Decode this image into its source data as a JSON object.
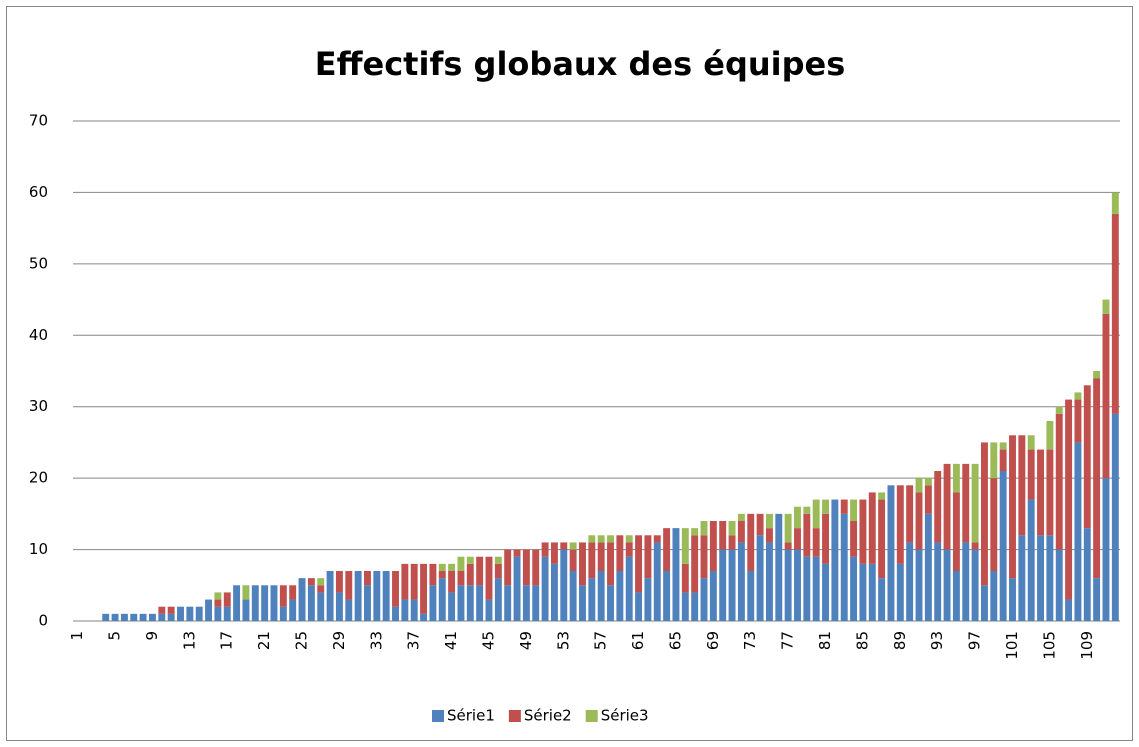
{
  "chart_data": {
    "type": "stacked_bar",
    "title": "Effectifs globaux des équipes",
    "categories": [
      "1",
      null,
      null,
      null,
      "5",
      null,
      null,
      null,
      "9",
      null,
      null,
      null,
      "13",
      null,
      null,
      null,
      "17",
      null,
      null,
      null,
      "21",
      null,
      null,
      null,
      "25",
      null,
      null,
      null,
      "29",
      null,
      null,
      null,
      "33",
      null,
      null,
      null,
      "37",
      null,
      null,
      null,
      "41",
      null,
      null,
      null,
      "45",
      null,
      null,
      null,
      "49",
      null,
      null,
      null,
      "53",
      null,
      null,
      null,
      "57",
      null,
      null,
      null,
      "61",
      null,
      null,
      null,
      "65",
      null,
      null,
      null,
      "69",
      null,
      null,
      null,
      "73",
      null,
      null,
      null,
      "77",
      null,
      null,
      null,
      "81",
      null,
      null,
      null,
      "85",
      null,
      null,
      null,
      "89",
      null,
      null,
      null,
      "93",
      null,
      null,
      null,
      "97",
      null,
      null,
      null,
      "101",
      null,
      null,
      null,
      "105",
      null,
      null,
      null,
      "109",
      null,
      null,
      null
    ],
    "series": [
      {
        "name": "Série1",
        "color": "#4f81bd",
        "values": [
          0,
          0,
          0,
          1,
          1,
          1,
          1,
          1,
          1,
          1,
          1,
          2,
          2,
          2,
          3,
          2,
          2,
          5,
          3,
          5,
          5,
          5,
          2,
          3,
          6,
          5,
          4,
          7,
          4,
          3,
          7,
          5,
          7,
          7,
          2,
          3,
          3,
          1,
          5,
          6,
          4,
          5,
          5,
          5,
          3,
          6,
          5,
          9,
          5,
          5,
          9,
          8,
          10,
          7,
          5,
          6,
          7,
          5,
          7,
          9,
          4,
          6,
          11,
          7,
          13,
          4,
          4,
          6,
          7,
          10,
          10,
          11,
          7,
          12,
          11,
          15,
          10,
          10,
          9,
          9,
          8,
          17,
          15,
          9,
          8,
          8,
          6,
          19,
          8,
          11,
          10,
          15,
          11,
          10,
          7,
          11,
          10,
          5,
          7,
          21,
          6,
          12,
          17,
          12,
          12,
          10,
          3,
          25,
          13,
          6,
          20,
          29
        ]
      },
      {
        "name": "Série2",
        "color": "#c0504d",
        "values": [
          0,
          0,
          0,
          0,
          0,
          0,
          0,
          0,
          0,
          1,
          1,
          0,
          0,
          0,
          0,
          1,
          2,
          0,
          0,
          0,
          0,
          0,
          3,
          2,
          0,
          1,
          1,
          0,
          3,
          4,
          0,
          2,
          0,
          0,
          5,
          5,
          5,
          7,
          3,
          1,
          3,
          2,
          3,
          4,
          6,
          2,
          5,
          1,
          5,
          5,
          2,
          3,
          1,
          3,
          6,
          5,
          4,
          6,
          5,
          2,
          8,
          6,
          1,
          6,
          0,
          4,
          8,
          6,
          7,
          4,
          2,
          3,
          8,
          3,
          2,
          0,
          1,
          3,
          6,
          4,
          7,
          0,
          2,
          5,
          9,
          10,
          11,
          0,
          11,
          8,
          8,
          4,
          10,
          12,
          11,
          11,
          1,
          20,
          13,
          3,
          20,
          14,
          7,
          12,
          12,
          19,
          28,
          6,
          20,
          28,
          23,
          28
        ]
      },
      {
        "name": "Série3",
        "color": "#9bbb59",
        "values": [
          0,
          0,
          0,
          0,
          0,
          0,
          0,
          0,
          0,
          0,
          0,
          0,
          0,
          0,
          0,
          1,
          0,
          0,
          2,
          0,
          0,
          0,
          0,
          0,
          0,
          0,
          1,
          0,
          0,
          0,
          0,
          0,
          0,
          0,
          0,
          0,
          0,
          0,
          0,
          1,
          1,
          2,
          1,
          0,
          0,
          1,
          0,
          0,
          0,
          0,
          0,
          0,
          0,
          1,
          0,
          1,
          1,
          1,
          0,
          1,
          0,
          0,
          0,
          0,
          0,
          5,
          1,
          2,
          0,
          0,
          2,
          1,
          0,
          0,
          2,
          0,
          4,
          3,
          1,
          4,
          2,
          0,
          0,
          3,
          0,
          0,
          1,
          0,
          0,
          0,
          2,
          1,
          0,
          0,
          4,
          0,
          11,
          0,
          5,
          1,
          0,
          0,
          2,
          0,
          4,
          1,
          0,
          1,
          0,
          1,
          2,
          3
        ]
      }
    ],
    "ylim": [
      0,
      70
    ],
    "yticks": [
      0,
      10,
      20,
      30,
      40,
      50,
      60,
      70
    ],
    "grid": true,
    "legend": "bottom"
  }
}
